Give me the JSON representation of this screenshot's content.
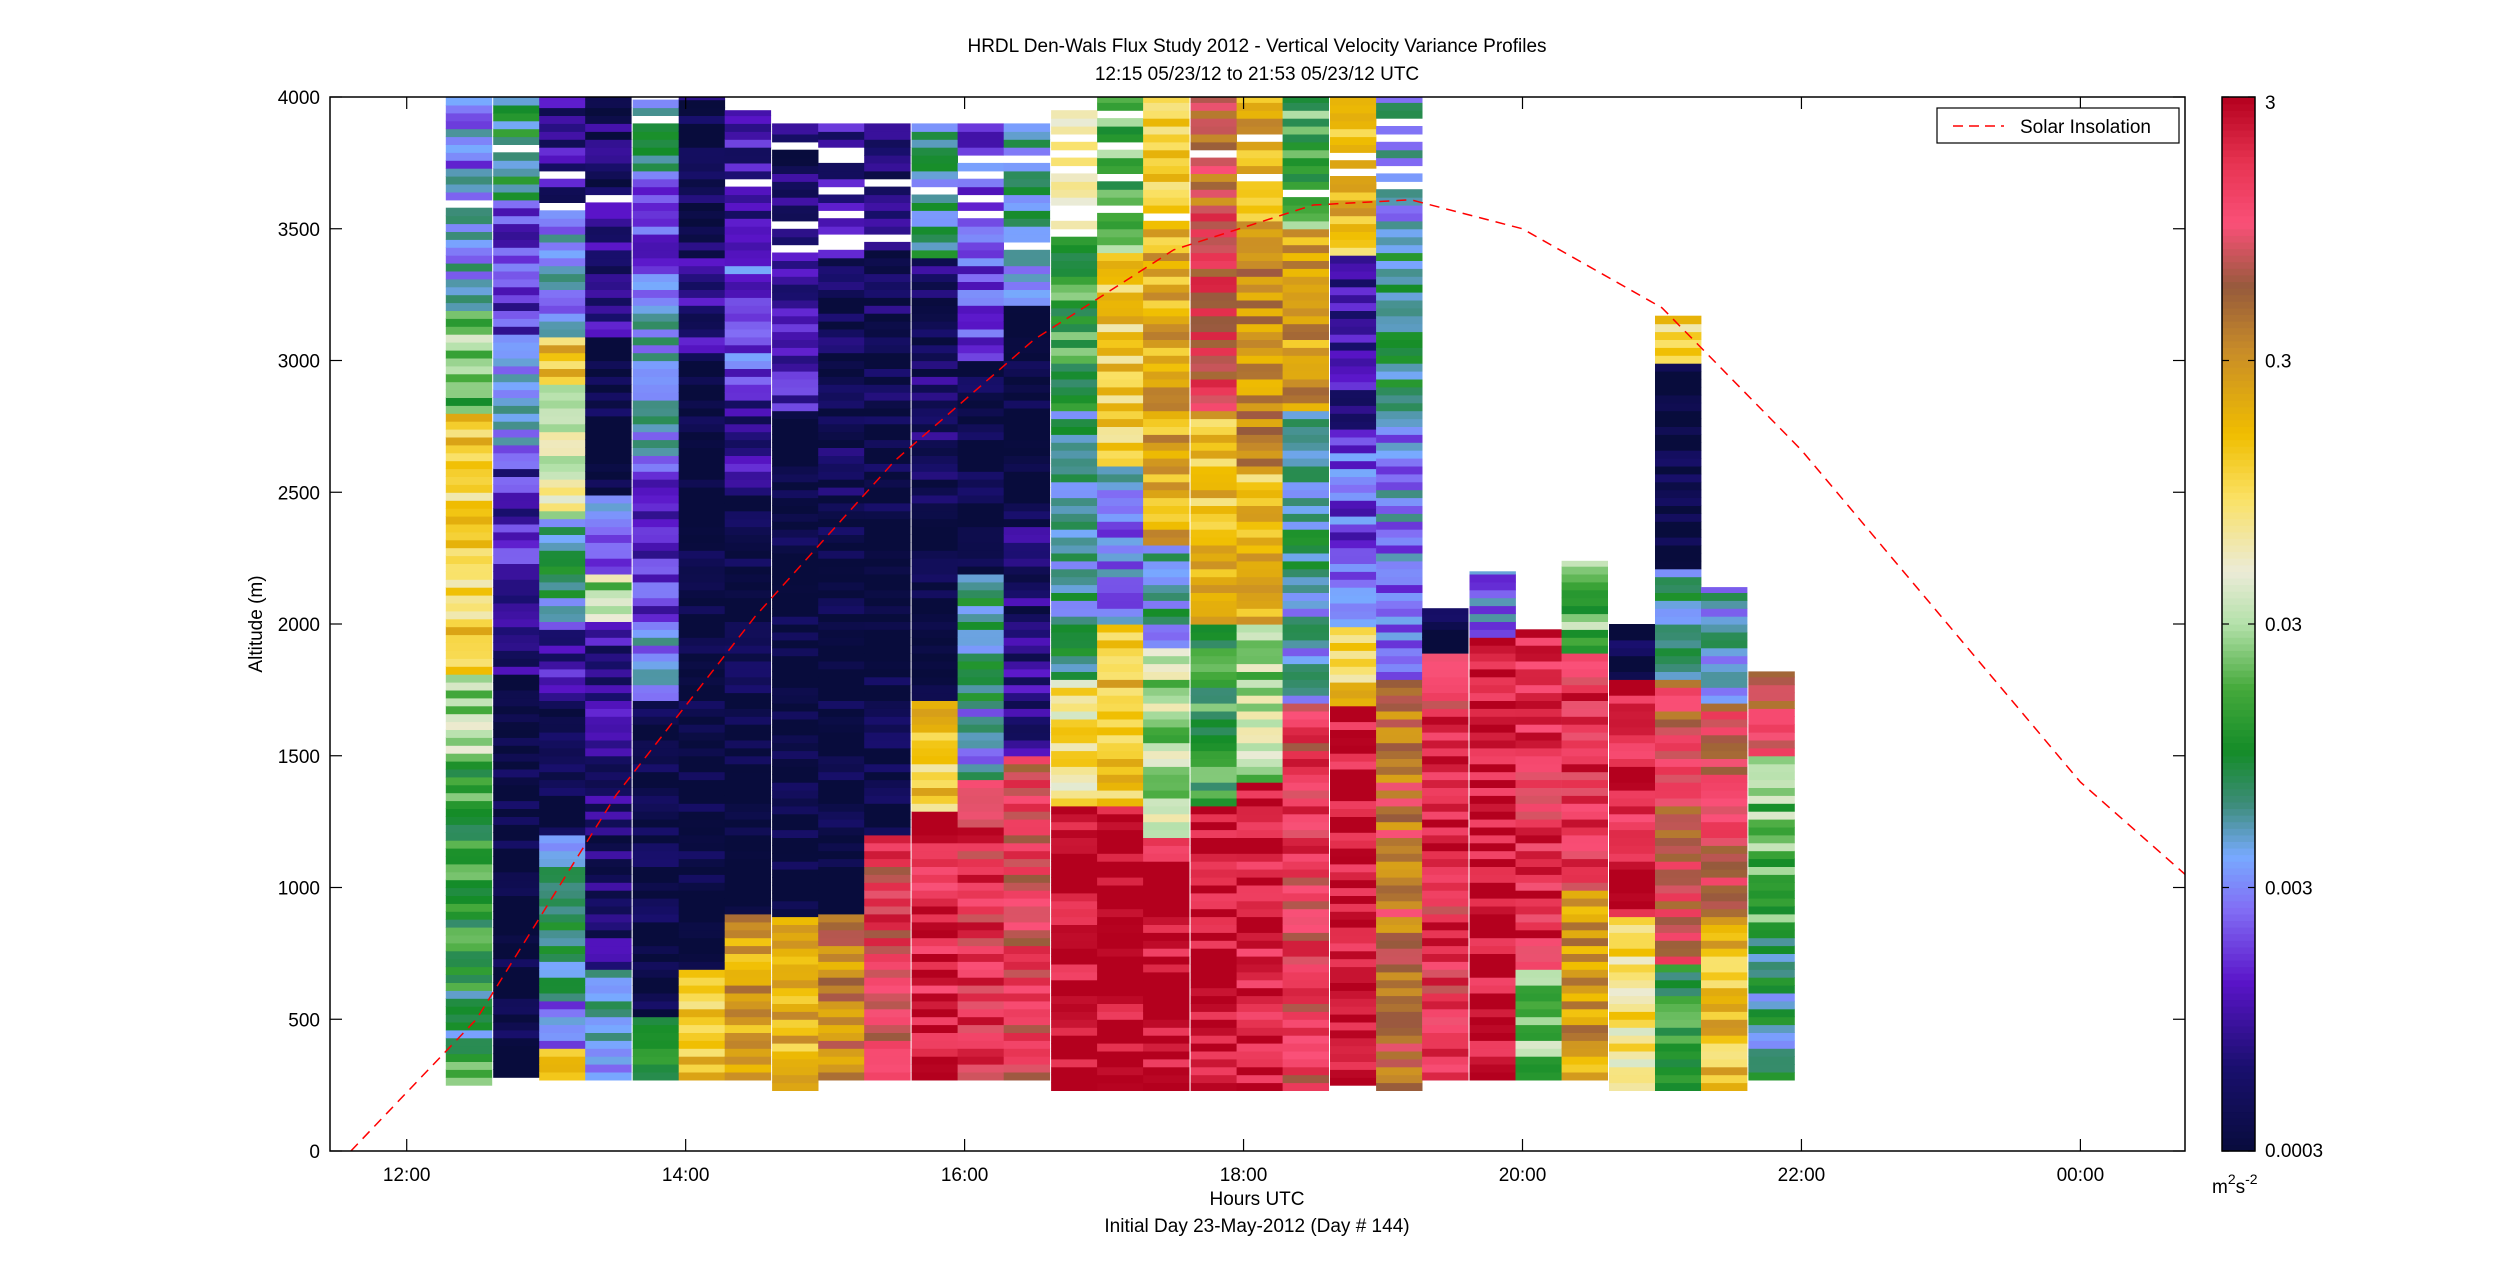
{
  "chart_data": {
    "type": "heatmap",
    "title": "HRDL Den-Wals Flux Study 2012 - Vertical Velocity Variance Profiles",
    "subtitle": "12:15 05/23/12 to 21:53 05/23/12  UTC",
    "xlabel": "Hours UTC",
    "xlabel2": "Initial Day 23-May-2012 (Day # 144)",
    "ylabel": "Altitude (m)",
    "x_unit": "hours UTC",
    "xlim": [
      11.45,
      24.75
    ],
    "ylim": [
      0,
      4000
    ],
    "x_ticks": [
      12,
      14,
      16,
      18,
      20,
      22,
      24
    ],
    "x_tick_labels": [
      "12:00",
      "14:00",
      "16:00",
      "18:00",
      "20:00",
      "22:00",
      "00:00"
    ],
    "y_ticks": [
      0,
      500,
      1000,
      1500,
      2000,
      2500,
      3000,
      3500,
      4000
    ],
    "y_tick_labels": [
      "0",
      "500",
      "1000",
      "1500",
      "2000",
      "2500",
      "3000",
      "3500",
      "4000"
    ],
    "colorbar": {
      "scale": "log",
      "range": [
        0.0003,
        3
      ],
      "ticks": [
        0.0003,
        0.003,
        0.03,
        0.3,
        3
      ],
      "tick_labels": [
        "0.0003",
        "0.003",
        "0.03",
        "0.3",
        "3"
      ],
      "unit_base": "m",
      "unit_sup1": "2",
      "unit_mid": "s",
      "unit_sup2": "-2"
    },
    "legend": {
      "placement": "top-right",
      "entries": [
        {
          "name": "Solar Insolation",
          "color": "#ff0000",
          "style": "dashed"
        }
      ]
    },
    "profile_hours": [
      12.28,
      12.62,
      12.95,
      13.28,
      13.62,
      13.95,
      14.28,
      14.62,
      14.95,
      15.28,
      15.62,
      15.95,
      16.28,
      16.62,
      16.95,
      17.28,
      17.62,
      17.95,
      18.28,
      18.62,
      18.95,
      19.28,
      19.62,
      19.95,
      20.28,
      20.62,
      20.95,
      21.28,
      21.62
    ],
    "profile_width_hours": 0.333,
    "bin_height_m": 30,
    "profiles": [
      {
        "t": 12.28,
        "bottom": 250,
        "top": 4000,
        "segments": [
          [
            250,
            350,
            0.02
          ],
          [
            350,
            600,
            0.006
          ],
          [
            600,
            1100,
            0.012
          ],
          [
            1100,
            1500,
            0.012
          ],
          [
            1500,
            1800,
            0.03
          ],
          [
            1800,
            2800,
            0.12
          ],
          [
            2800,
            3200,
            0.02
          ],
          [
            3200,
            3600,
            0.004
          ],
          [
            3600,
            4000,
            0.003
          ]
        ]
      },
      {
        "t": 12.62,
        "bottom": 280,
        "top": 4000,
        "segments": [
          [
            280,
            1800,
            0.0003
          ],
          [
            1800,
            2200,
            0.0008
          ],
          [
            2200,
            2600,
            0.0012
          ],
          [
            2600,
            3100,
            0.003
          ],
          [
            3100,
            3600,
            0.0015
          ],
          [
            3600,
            4000,
            0.008
          ]
        ]
      },
      {
        "t": 12.95,
        "bottom": 270,
        "top": 4000,
        "segments": [
          [
            270,
            400,
            0.15
          ],
          [
            400,
            600,
            0.003
          ],
          [
            600,
            1200,
            0.006
          ],
          [
            1200,
            1700,
            0.0003
          ],
          [
            1700,
            2000,
            0.001
          ],
          [
            2000,
            2400,
            0.006
          ],
          [
            2400,
            2900,
            0.05
          ],
          [
            2900,
            3100,
            0.15
          ],
          [
            3100,
            3600,
            0.004
          ],
          [
            3600,
            4000,
            0.0008
          ]
        ]
      },
      {
        "t": 13.28,
        "bottom": 270,
        "top": 4000,
        "segments": [
          [
            270,
            700,
            0.004
          ],
          [
            700,
            1500,
            0.0006
          ],
          [
            1500,
            2000,
            0.0008
          ],
          [
            2000,
            2200,
            0.03
          ],
          [
            2200,
            2500,
            0.003
          ],
          [
            2500,
            3100,
            0.0003
          ],
          [
            3100,
            3600,
            0.0008
          ],
          [
            3600,
            4000,
            0.0005
          ]
        ]
      },
      {
        "t": 13.62,
        "bottom": 270,
        "top": 4000,
        "segments": [
          [
            270,
            500,
            0.012
          ],
          [
            500,
            1700,
            0.0003
          ],
          [
            1700,
            2000,
            0.003
          ],
          [
            2000,
            2600,
            0.0015
          ],
          [
            2600,
            3200,
            0.004
          ],
          [
            3200,
            3700,
            0.002
          ],
          [
            3700,
            4000,
            0.006
          ]
        ]
      },
      {
        "t": 13.95,
        "bottom": 270,
        "top": 4000,
        "segments": [
          [
            270,
            700,
            0.15
          ],
          [
            700,
            3000,
            0.0003
          ],
          [
            3000,
            3400,
            0.0008
          ],
          [
            3400,
            4000,
            0.0004
          ]
        ]
      },
      {
        "t": 14.28,
        "bottom": 270,
        "top": 3950,
        "segments": [
          [
            270,
            900,
            0.25
          ],
          [
            900,
            2500,
            0.0003
          ],
          [
            2500,
            2900,
            0.0008
          ],
          [
            2900,
            3400,
            0.002
          ],
          [
            3400,
            3950,
            0.001
          ]
        ]
      },
      {
        "t": 14.62,
        "bottom": 230,
        "top": 3900,
        "segments": [
          [
            230,
            900,
            0.18
          ],
          [
            900,
            2800,
            0.0003
          ],
          [
            2800,
            3400,
            0.001
          ],
          [
            3400,
            3900,
            0.0005
          ]
        ]
      },
      {
        "t": 14.95,
        "bottom": 270,
        "top": 3900,
        "segments": [
          [
            270,
            900,
            0.35
          ],
          [
            900,
            2400,
            0.0003
          ],
          [
            2400,
            3400,
            0.0004
          ],
          [
            3400,
            3900,
            0.001
          ]
        ]
      },
      {
        "t": 15.28,
        "bottom": 270,
        "top": 3900,
        "segments": [
          [
            270,
            1200,
            1.2
          ],
          [
            1200,
            2800,
            0.0003
          ],
          [
            2800,
            3400,
            0.0004
          ],
          [
            3400,
            3900,
            0.0006
          ]
        ]
      },
      {
        "t": 15.62,
        "bottom": 270,
        "top": 3900,
        "segments": [
          [
            270,
            1300,
            2.0
          ],
          [
            1300,
            1700,
            0.12
          ],
          [
            1700,
            2300,
            0.0003
          ],
          [
            2300,
            3400,
            0.0005
          ],
          [
            3400,
            3900,
            0.006
          ]
        ]
      },
      {
        "t": 15.95,
        "bottom": 270,
        "top": 3900,
        "segments": [
          [
            270,
            1400,
            1.5
          ],
          [
            1400,
            1700,
            0.004
          ],
          [
            1700,
            2200,
            0.006
          ],
          [
            2200,
            3000,
            0.0003
          ],
          [
            3000,
            3900,
            0.002
          ]
        ]
      },
      {
        "t": 16.28,
        "bottom": 270,
        "top": 3900,
        "segments": [
          [
            270,
            1500,
            1.0
          ],
          [
            1500,
            1900,
            0.0008
          ],
          [
            1900,
            2400,
            0.0006
          ],
          [
            2400,
            3200,
            0.0003
          ],
          [
            3200,
            3900,
            0.005
          ]
        ]
      },
      {
        "t": 16.62,
        "bottom": 230,
        "top": 3950,
        "segments": [
          [
            230,
            1300,
            2.5
          ],
          [
            1300,
            1800,
            0.08
          ],
          [
            1800,
            2800,
            0.006
          ],
          [
            2800,
            3500,
            0.012
          ],
          [
            3500,
            3950,
            0.05
          ]
        ]
      },
      {
        "t": 16.95,
        "bottom": 230,
        "top": 4000,
        "segments": [
          [
            230,
            1300,
            3.0
          ],
          [
            1300,
            2000,
            0.15
          ],
          [
            2000,
            2600,
            0.003
          ],
          [
            2600,
            3400,
            0.12
          ],
          [
            3400,
            4000,
            0.015
          ]
        ]
      },
      {
        "t": 17.28,
        "bottom": 230,
        "top": 4000,
        "segments": [
          [
            230,
            1200,
            2.5
          ],
          [
            1200,
            1900,
            0.03
          ],
          [
            1900,
            2300,
            0.005
          ],
          [
            2300,
            3500,
            0.2
          ],
          [
            3500,
            4000,
            0.1
          ]
        ]
      },
      {
        "t": 17.62,
        "bottom": 230,
        "top": 4000,
        "segments": [
          [
            230,
            1300,
            2.8
          ],
          [
            1300,
            2000,
            0.012
          ],
          [
            2000,
            2800,
            0.15
          ],
          [
            2800,
            3600,
            1.0
          ],
          [
            3600,
            4000,
            0.5
          ]
        ]
      },
      {
        "t": 17.95,
        "bottom": 230,
        "top": 4000,
        "segments": [
          [
            230,
            1400,
            2.0
          ],
          [
            1400,
            2000,
            0.03
          ],
          [
            2000,
            2600,
            0.15
          ],
          [
            2600,
            3400,
            0.3
          ],
          [
            3400,
            4000,
            0.2
          ]
        ]
      },
      {
        "t": 18.28,
        "bottom": 230,
        "top": 4000,
        "segments": [
          [
            230,
            1700,
            1.2
          ],
          [
            1700,
            2100,
            0.004
          ],
          [
            2100,
            2800,
            0.006
          ],
          [
            2800,
            3500,
            0.25
          ],
          [
            3500,
            4000,
            0.015
          ]
        ]
      },
      {
        "t": 18.62,
        "bottom": 250,
        "top": 4000,
        "segments": [
          [
            250,
            1700,
            2.5
          ],
          [
            1700,
            2000,
            0.12
          ],
          [
            2000,
            2700,
            0.002
          ],
          [
            2700,
            3400,
            0.0008
          ],
          [
            3400,
            4000,
            0.15
          ]
        ]
      },
      {
        "t": 18.95,
        "bottom": 230,
        "top": 4000,
        "segments": [
          [
            230,
            1800,
            0.5
          ],
          [
            1800,
            2100,
            0.003
          ],
          [
            2100,
            2800,
            0.003
          ],
          [
            2800,
            3400,
            0.006
          ],
          [
            3400,
            4000,
            0.004
          ]
        ]
      },
      {
        "t": 19.28,
        "bottom": 270,
        "top": 2060,
        "segments": [
          [
            270,
            1900,
            1.5
          ],
          [
            1900,
            2060,
            0.0003
          ]
        ]
      },
      {
        "t": 19.62,
        "bottom": 270,
        "top": 2200,
        "segments": [
          [
            270,
            1950,
            2.5
          ],
          [
            1950,
            2200,
            0.003
          ]
        ]
      },
      {
        "t": 19.95,
        "bottom": 270,
        "top": 1980,
        "segments": [
          [
            270,
            700,
            0.02
          ],
          [
            700,
            1980,
            1.5
          ]
        ]
      },
      {
        "t": 20.28,
        "bottom": 270,
        "top": 2240,
        "segments": [
          [
            270,
            1000,
            0.25
          ],
          [
            1000,
            1900,
            1.5
          ],
          [
            1900,
            2240,
            0.02
          ]
        ]
      },
      {
        "t": 20.62,
        "bottom": 230,
        "top": 2000,
        "segments": [
          [
            230,
            900,
            0.08
          ],
          [
            900,
            1800,
            2.0
          ],
          [
            1800,
            2000,
            0.0003
          ]
        ]
      },
      {
        "t": 20.95,
        "bottom": 230,
        "top": 3170,
        "segments": [
          [
            230,
            700,
            0.012
          ],
          [
            700,
            1800,
            0.8
          ],
          [
            1800,
            2200,
            0.006
          ],
          [
            2200,
            3000,
            0.0003
          ],
          [
            3000,
            3170,
            0.12
          ]
        ]
      },
      {
        "t": 21.28,
        "bottom": 230,
        "top": 2140,
        "segments": [
          [
            230,
            900,
            0.15
          ],
          [
            900,
            1700,
            0.8
          ],
          [
            1700,
            2140,
            0.004
          ]
        ]
      },
      {
        "t": 21.62,
        "bottom": 270,
        "top": 1820,
        "segments": [
          [
            270,
            800,
            0.006
          ],
          [
            800,
            1500,
            0.02
          ],
          [
            1500,
            1820,
            0.7
          ]
        ]
      }
    ],
    "solar_insolation": {
      "name": "Solar Insolation",
      "x": [
        11.6,
        12.5,
        13.5,
        14.5,
        15.5,
        16.5,
        17.5,
        18.5,
        19.2,
        20.0,
        21.0,
        22.0,
        23.0,
        24.0,
        24.75
      ],
      "y": [
        0,
        500,
        1350,
        2030,
        2620,
        3080,
        3420,
        3590,
        3610,
        3500,
        3200,
        2660,
        2030,
        1400,
        1050
      ]
    }
  }
}
